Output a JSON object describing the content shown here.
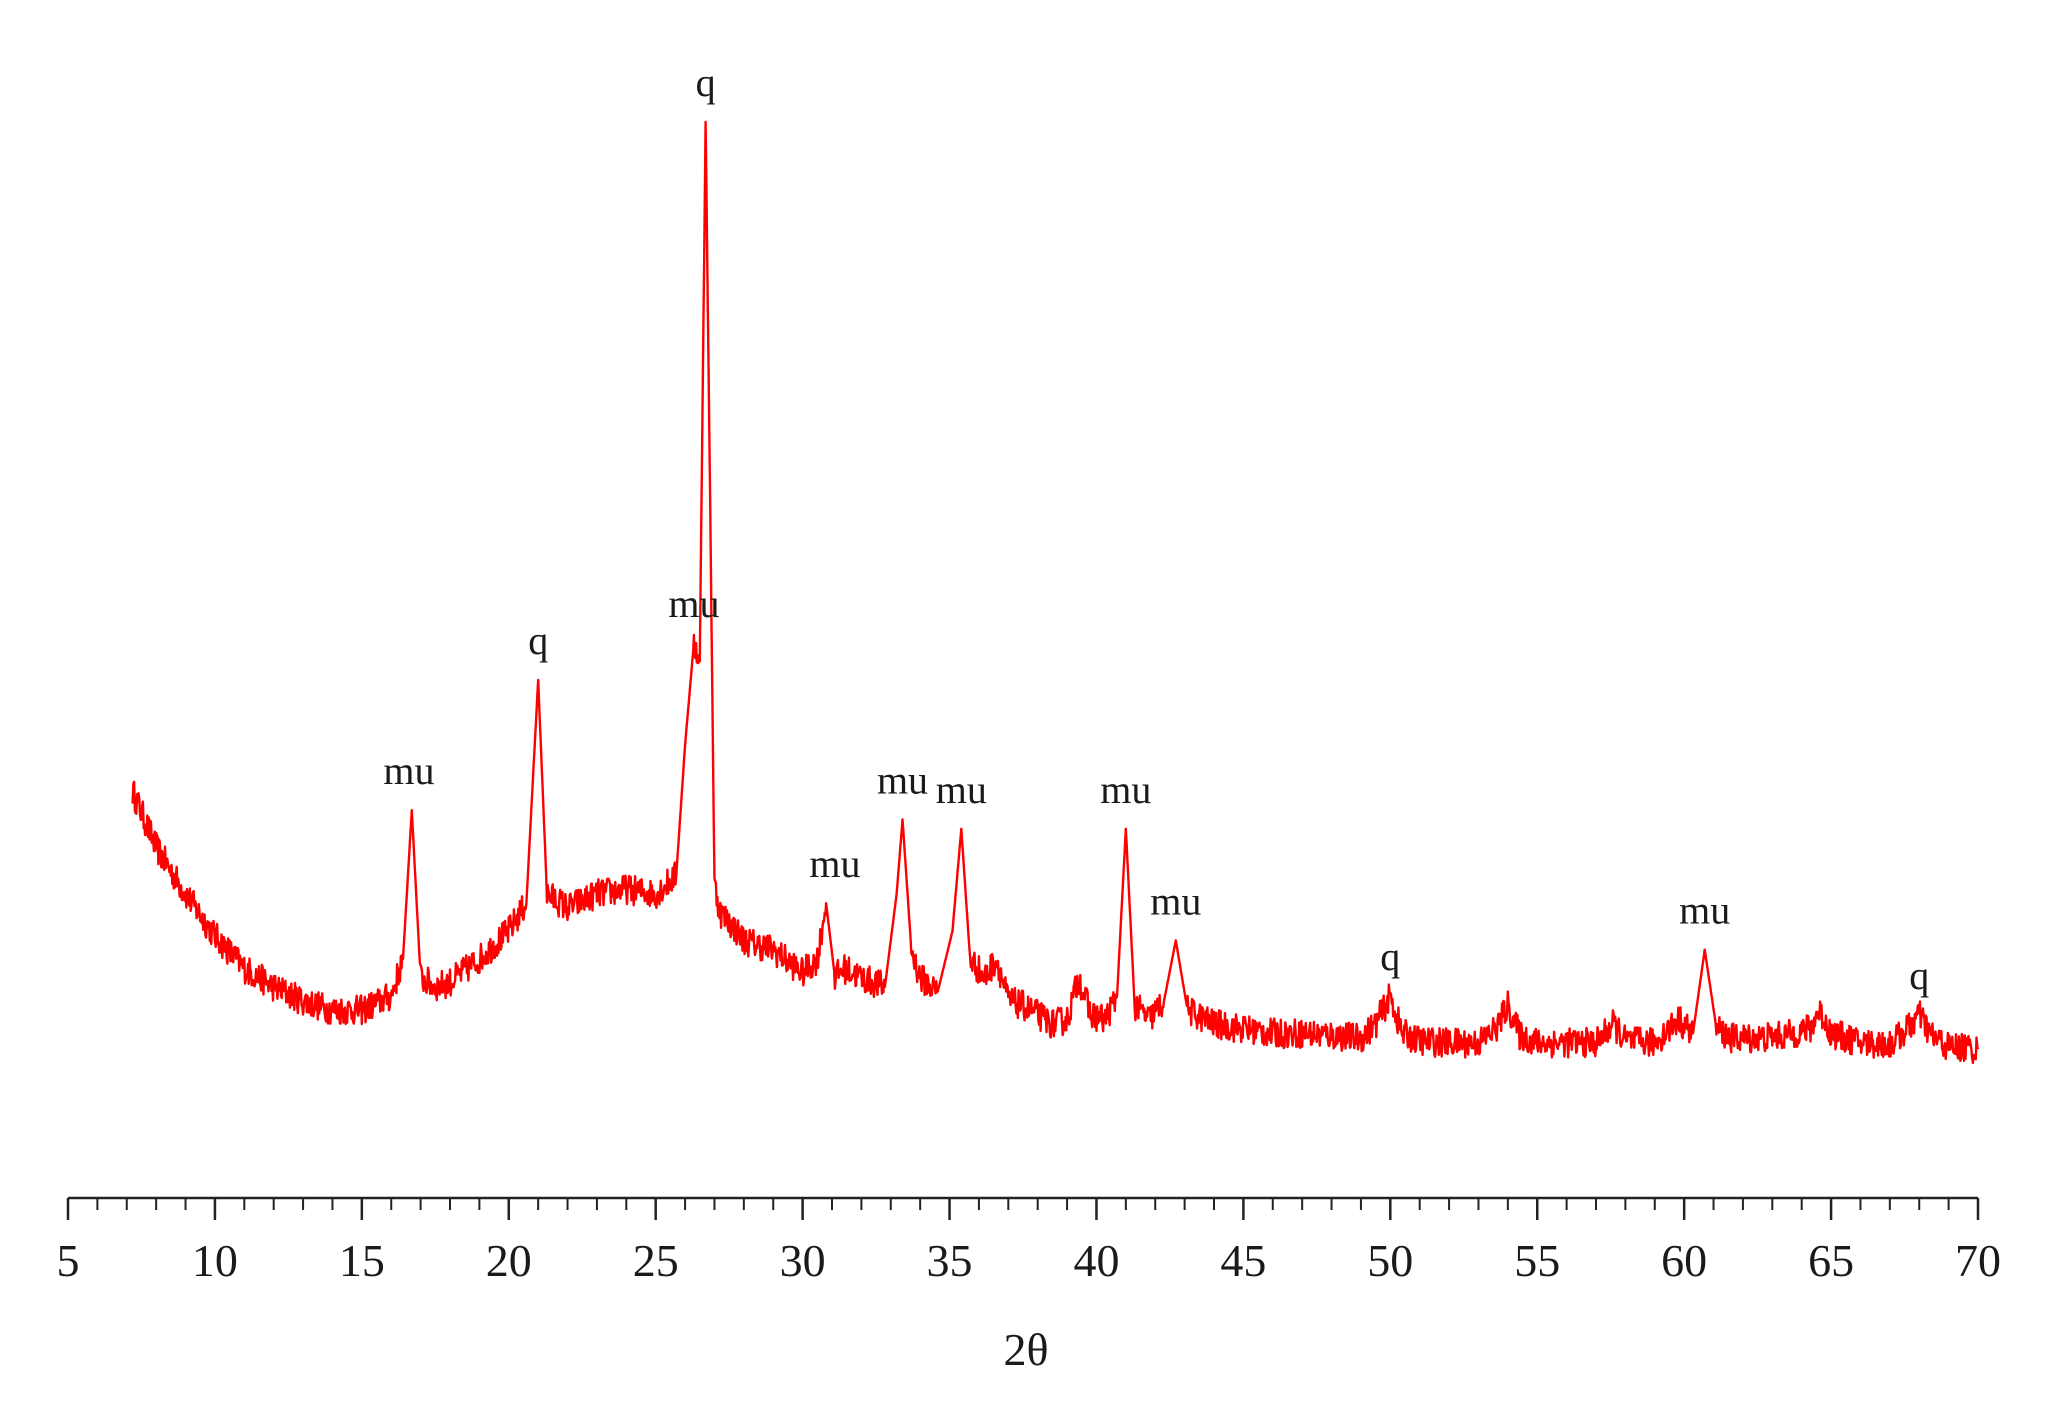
{
  "chart_data": {
    "type": "line",
    "xlabel": "2θ",
    "ylabel": "",
    "title": "",
    "xlim": [
      5,
      70
    ],
    "ylim": [
      0,
      100
    ],
    "y_axis_shown": false,
    "grid": false,
    "x_ticks": [
      {
        "value": 5,
        "label": "5"
      },
      {
        "value": 10,
        "label": "10"
      },
      {
        "value": 15,
        "label": "15"
      },
      {
        "value": 20,
        "label": "20"
      },
      {
        "value": 25,
        "label": "25"
      },
      {
        "value": 30,
        "label": "30"
      },
      {
        "value": 35,
        "label": "35"
      },
      {
        "value": 40,
        "label": "40"
      },
      {
        "value": 45,
        "label": "45"
      },
      {
        "value": 50,
        "label": "50"
      },
      {
        "value": 55,
        "label": "55"
      },
      {
        "value": 60,
        "label": "60"
      },
      {
        "value": 65,
        "label": "65"
      },
      {
        "value": 70,
        "label": "70"
      }
    ],
    "series": [
      {
        "color": "#ff0000",
        "x": [
          7.2,
          8,
          9,
          10,
          11,
          12,
          13,
          14,
          15,
          16,
          16.4,
          16.7,
          17.0,
          17.5,
          18,
          19,
          20,
          20.6,
          21.0,
          21.3,
          22,
          23,
          24,
          25,
          25.7,
          26.0,
          26.3,
          26.5,
          26.7,
          26.85,
          27.0,
          27.2,
          27.5,
          28,
          29,
          30,
          30.5,
          30.8,
          31.1,
          31.4,
          32,
          32.8,
          33.2,
          33.4,
          33.7,
          34,
          34.6,
          35.1,
          35.4,
          35.7,
          36.2,
          36.6,
          37.0,
          37.5,
          38,
          38.5,
          39,
          39.4,
          39.8,
          40.3,
          40.7,
          41.0,
          41.3,
          41.8,
          42.3,
          42.7,
          43.1,
          44,
          45,
          46,
          47,
          48,
          49,
          49.5,
          50.0,
          50.4,
          51,
          52,
          53,
          53.6,
          54.0,
          54.4,
          55,
          56,
          57,
          57.6,
          58,
          59,
          59.8,
          60.3,
          60.7,
          61.1,
          61.6,
          62.5,
          63.5,
          64.3,
          64.6,
          65,
          66,
          67,
          67.6,
          68.0,
          68.4,
          69,
          69.5,
          70
        ],
        "y": [
          28,
          22,
          17,
          12.5,
          9,
          7,
          5.5,
          4.5,
          4.5,
          6,
          10,
          26,
          8,
          7,
          7.5,
          10,
          13,
          16,
          40,
          17,
          15.5,
          17,
          17.5,
          17,
          19,
          33,
          44,
          42,
          100,
          60,
          18,
          15,
          14,
          12,
          11,
          8.5,
          10,
          16,
          8,
          9,
          8,
          7,
          17,
          25,
          11,
          8,
          6.5,
          13,
          24,
          10,
          8,
          10,
          5.5,
          5,
          4,
          3,
          3.5,
          8,
          4,
          3.5,
          6,
          24,
          5,
          3.5,
          5.5,
          12,
          4.5,
          3,
          2.5,
          2,
          2,
          1.8,
          1.5,
          3,
          6,
          2,
          1.2,
          1,
          1,
          2.5,
          5,
          1.8,
          1,
          1,
          1,
          3,
          1.2,
          1,
          3.5,
          2,
          11,
          2.5,
          1.5,
          1.5,
          1.8,
          2.5,
          4.5,
          2,
          1,
          0.8,
          2.5,
          4,
          1.8,
          0.5,
          0.5,
          0.3
        ]
      }
    ],
    "annotations": [
      {
        "text": "mu",
        "x": 16.6,
        "y": 26
      },
      {
        "text": "q",
        "x": 21.0,
        "y": 40
      },
      {
        "text": "mu",
        "x": 26.3,
        "y": 44
      },
      {
        "text": "q",
        "x": 26.7,
        "y": 100
      },
      {
        "text": "mu",
        "x": 31.1,
        "y": 16
      },
      {
        "text": "mu",
        "x": 33.4,
        "y": 25
      },
      {
        "text": "mu",
        "x": 35.4,
        "y": 24
      },
      {
        "text": "mu",
        "x": 41.0,
        "y": 24
      },
      {
        "text": "mu",
        "x": 42.7,
        "y": 12
      },
      {
        "text": "q",
        "x": 50.0,
        "y": 6
      },
      {
        "text": "mu",
        "x": 60.7,
        "y": 11
      },
      {
        "text": "q",
        "x": 68.0,
        "y": 4
      }
    ]
  }
}
